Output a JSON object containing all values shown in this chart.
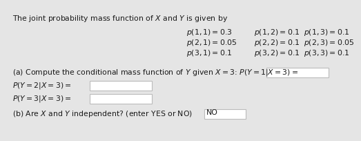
{
  "bg_color": "#e5e5e5",
  "text_color": "#1a1a1a",
  "title_line": "The joint probability mass function of $X$ and $Y$ is given by",
  "pmf_rows": [
    [
      "$p(1,1) = 0.3$",
      "$p(1,2) = 0.1$",
      "$p(1,3) = 0.1$"
    ],
    [
      "$p(2,1) = 0.05$",
      "$p(2,2) = 0.1$",
      "$p(2,3) = 0.05$"
    ],
    [
      "$p(3,1) = 0.1$",
      "$p(3,2) = 0.1$",
      "$p(3,3) = 0.1$"
    ]
  ],
  "part_a_line": "(a) Compute the conditional mass function of $Y$ given $X = 3$: $P(Y = 1|X = 3) =$",
  "part_a_line2": "$P(Y = 2|X = 3) =$",
  "part_a_line3": "$P(Y = 3|X = 3) =$",
  "part_b_line": "(b) Are $X$ and $Y$ independent? (enter YES or NO)",
  "part_b_answer": "NO",
  "box_color": "#ffffff",
  "box_edge_color": "#bbbbbb",
  "font_size": 7.8
}
